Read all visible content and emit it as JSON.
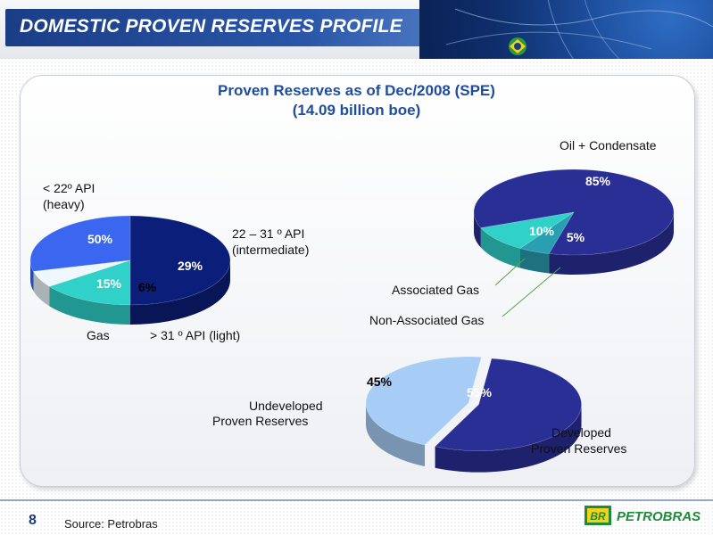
{
  "header": {
    "title": "DOMESTIC PROVEN RESERVES PROFILE"
  },
  "panel": {
    "title_line1": "Proven Reserves as of Dec/2008 (SPE)",
    "title_line2": "(14.09 billion boe)"
  },
  "colors": {
    "title_bar": "#1b3d86",
    "subtitle": "#1f4ea0",
    "dark_navy": "#0b1f7a",
    "blue": "#3b67f0",
    "teal": "#2fd1c8",
    "pale": "#eef7fb",
    "navy": "#2a2f96",
    "light_blue": "#a7cdf6"
  },
  "chart_data": [
    {
      "type": "pie",
      "name": "api",
      "labels": [
        "< 22º API (heavy)",
        "22 – 31 º API (intermediate)",
        "> 31 º API (light)",
        "Gas"
      ],
      "values": [
        50,
        29,
        6,
        15
      ],
      "value_labels": [
        "50%",
        "29%",
        "6%",
        "15%"
      ],
      "colors": [
        "#0b1f7a",
        "#3b67f0",
        "#eef7fb",
        "#2fd1c8"
      ]
    },
    {
      "type": "pie",
      "name": "fluid",
      "labels": [
        "Oil + Condensate",
        "Associated Gas",
        "Non-Associated Gas"
      ],
      "values": [
        85,
        10,
        5
      ],
      "value_labels": [
        "85%",
        "10%",
        "5%"
      ],
      "colors": [
        "#2a2f96",
        "#2fd1c8",
        "#2a9fb2"
      ]
    },
    {
      "type": "pie",
      "name": "development",
      "labels": [
        "Developed Proven Reserves",
        "Undeveloped Proven Reserves"
      ],
      "values": [
        55,
        45
      ],
      "value_labels": [
        "55%",
        "45%"
      ],
      "colors": [
        "#2a2f96",
        "#a7cdf6"
      ]
    }
  ],
  "labels": {
    "heavy_l1": "< 22º API",
    "heavy_l2": "(heavy)",
    "inter_l1": "22 – 31 º API",
    "inter_l2": "(intermediate)",
    "gas": "Gas",
    "light": "> 31 º API (light)",
    "oil": "Oil + Condensate",
    "assoc": "Associated Gas",
    "nonassoc": "Non-Associated Gas",
    "undev_l1": "Undeveloped",
    "undev_l2": "Proven Reserves",
    "dev_l1": "Developed",
    "dev_l2": "Proven Reserves"
  },
  "footer": {
    "page": "8",
    "source": "Source: Petrobras",
    "logo_text": "PETROBRAS",
    "logo_mark": "BR"
  }
}
